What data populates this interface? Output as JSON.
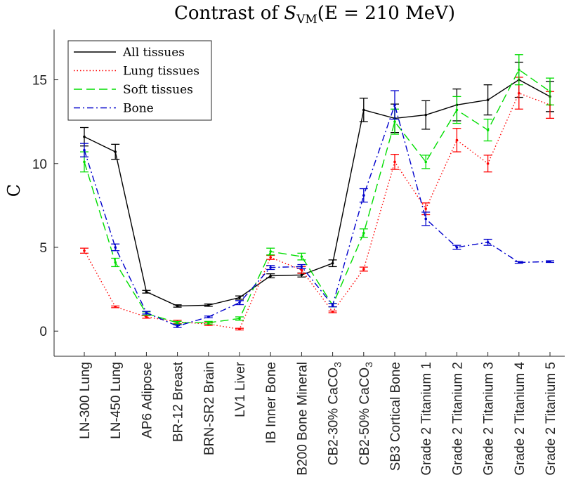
{
  "chart_data": {
    "type": "line",
    "title_prefix": "Contrast of ",
    "title_symbol": "S",
    "title_subscript": "VM",
    "title_suffix": "(E = 210 MeV)",
    "ylabel": "C",
    "ylim": [
      -1.5,
      18
    ],
    "yticks": [
      0,
      5,
      10,
      15
    ],
    "categories": [
      "LN-300 Lung",
      "LN-450 Lung",
      "AP6 Adipose",
      "BR-12 Breast",
      "BRN-SR2 Brain",
      "LV1 Liver",
      "IB Inner Bone",
      "B200 Bone Mineral",
      "CB2-30% CaCO3",
      "CB2-50% CaCO3",
      "SB3 Cortical Bone",
      "Grade 2 Titanium 1",
      "Grade 2 Titanium 2",
      "Grade 2 Titanium 3",
      "Grade 2 Titanium 4",
      "Grade 2 Titanium 5"
    ],
    "legend_position": "top-left",
    "series": [
      {
        "name": "All tissues",
        "color": "#000000",
        "dash": "solid",
        "values": [
          11.6,
          10.7,
          2.35,
          1.5,
          1.55,
          2.0,
          3.3,
          3.35,
          4.05,
          13.2,
          12.7,
          12.9,
          13.5,
          13.8,
          15.0,
          14.0
        ],
        "errors": [
          0.55,
          0.45,
          0.08,
          0.07,
          0.07,
          0.1,
          0.12,
          0.12,
          0.2,
          0.7,
          0.85,
          0.85,
          0.95,
          0.9,
          1.05,
          0.9
        ]
      },
      {
        "name": "Lung tissues",
        "color": "#ff0000",
        "dash": "dotted",
        "values": [
          4.8,
          1.45,
          0.85,
          0.55,
          0.42,
          0.12,
          4.4,
          3.65,
          1.15,
          3.7,
          10.1,
          7.3,
          11.4,
          10.0,
          14.2,
          13.5
        ],
        "errors": [
          0.15,
          0.05,
          0.08,
          0.1,
          0.08,
          0.05,
          0.12,
          0.2,
          0.05,
          0.12,
          0.45,
          0.35,
          0.7,
          0.5,
          0.95,
          0.8
        ]
      },
      {
        "name": "Soft tissues",
        "color": "#00dd00",
        "dash": "dashed",
        "values": [
          10.1,
          4.1,
          1.05,
          0.5,
          0.5,
          0.75,
          4.75,
          4.45,
          1.55,
          5.85,
          12.5,
          10.1,
          13.2,
          12.0,
          15.6,
          14.3
        ],
        "errors": [
          0.6,
          0.25,
          0.1,
          0.08,
          0.08,
          0.1,
          0.2,
          0.2,
          0.1,
          0.25,
          0.75,
          0.4,
          0.8,
          0.65,
          0.9,
          0.8
        ]
      },
      {
        "name": "Bone",
        "color": "#0000cc",
        "dash": "dashdot",
        "values": [
          10.8,
          5.0,
          1.1,
          0.3,
          0.85,
          1.7,
          3.8,
          3.85,
          1.55,
          8.1,
          13.5,
          6.7,
          5.0,
          5.3,
          4.1,
          4.15
        ],
        "errors": [
          0.4,
          0.2,
          0.08,
          0.08,
          0.05,
          0.12,
          0.12,
          0.12,
          0.1,
          0.4,
          0.85,
          0.4,
          0.12,
          0.18,
          0.05,
          0.05
        ]
      }
    ]
  }
}
